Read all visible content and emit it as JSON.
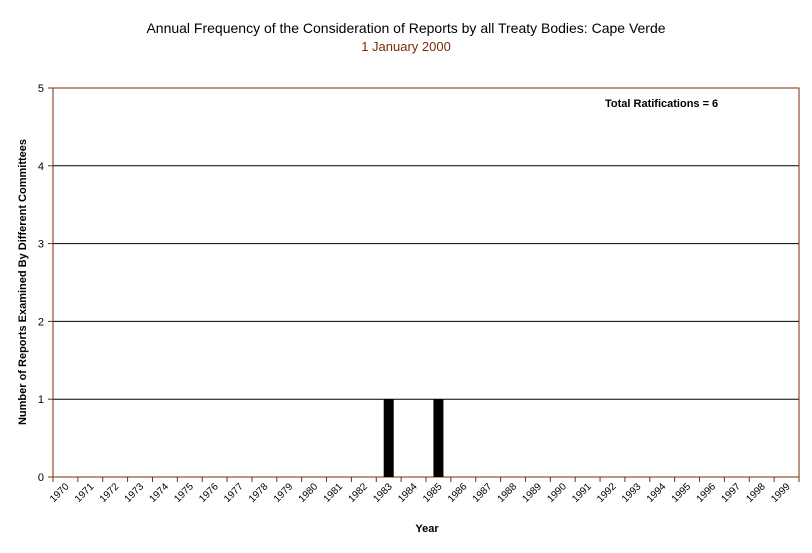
{
  "chart_data": {
    "type": "bar",
    "title": "Annual Frequency of the Consideration of Reports by all Treaty Bodies: Cape Verde",
    "subtitle": "1 January 2000",
    "xlabel": "Year",
    "ylabel": "Number of Reports Examined By Different Committees",
    "annotation": "Total Ratifications = 6",
    "ylim": [
      0,
      5
    ],
    "yticks": [
      0,
      1,
      2,
      3,
      4,
      5
    ],
    "grid": true,
    "categories": [
      "1970",
      "1971",
      "1972",
      "1973",
      "1974",
      "1975",
      "1976",
      "1977",
      "1978",
      "1979",
      "1980",
      "1981",
      "1982",
      "1983",
      "1984",
      "1985",
      "1986",
      "1987",
      "1988",
      "1989",
      "1990",
      "1991",
      "1992",
      "1993",
      "1994",
      "1995",
      "1996",
      "1997",
      "1998",
      "1999"
    ],
    "values": [
      0,
      0,
      0,
      0,
      0,
      0,
      0,
      0,
      0,
      0,
      0,
      0,
      0,
      1,
      0,
      1,
      0,
      0,
      0,
      0,
      0,
      0,
      0,
      0,
      0,
      0,
      0,
      0,
      0,
      0
    ],
    "colors": {
      "bar": "#000000",
      "grid": "#000000",
      "frame": "#7a2c05",
      "subtitle": "#7a2c05"
    }
  }
}
